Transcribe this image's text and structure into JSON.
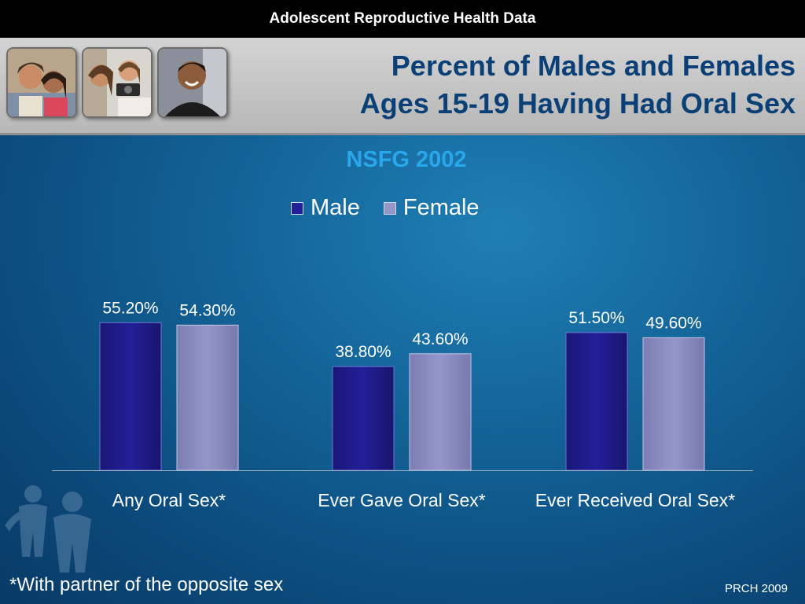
{
  "header": {
    "banner": "Adolescent Reproductive Health Data",
    "title_line1": "Percent of Males and Females",
    "title_line2": "Ages 15-19 Having Had Oral Sex",
    "photos": [
      "teen-couple-photo",
      "teens-with-camera-photo",
      "smiling-teen-photo"
    ]
  },
  "colors": {
    "male": "#221f98",
    "female": "#9596c8",
    "title": "#0a4075",
    "subtitle": "#2aa7ea"
  },
  "chart_data": {
    "type": "bar",
    "title": "NSFG 2002",
    "categories": [
      "Any Oral Sex*",
      "Ever Gave Oral Sex*",
      "Ever Received Oral Sex*"
    ],
    "series": [
      {
        "name": "Male",
        "values": [
          55.2,
          38.8,
          51.5
        ],
        "labels": [
          "55.20%",
          "38.80%",
          "51.50%"
        ]
      },
      {
        "name": "Female",
        "values": [
          54.3,
          43.6,
          49.6
        ],
        "labels": [
          "54.30%",
          "43.60%",
          "49.60%"
        ]
      }
    ],
    "ylim": [
      0,
      100
    ],
    "grid": false,
    "legend_position": "top"
  },
  "footnote": "*With partner of the opposite sex",
  "credit": "PRCH 2009"
}
